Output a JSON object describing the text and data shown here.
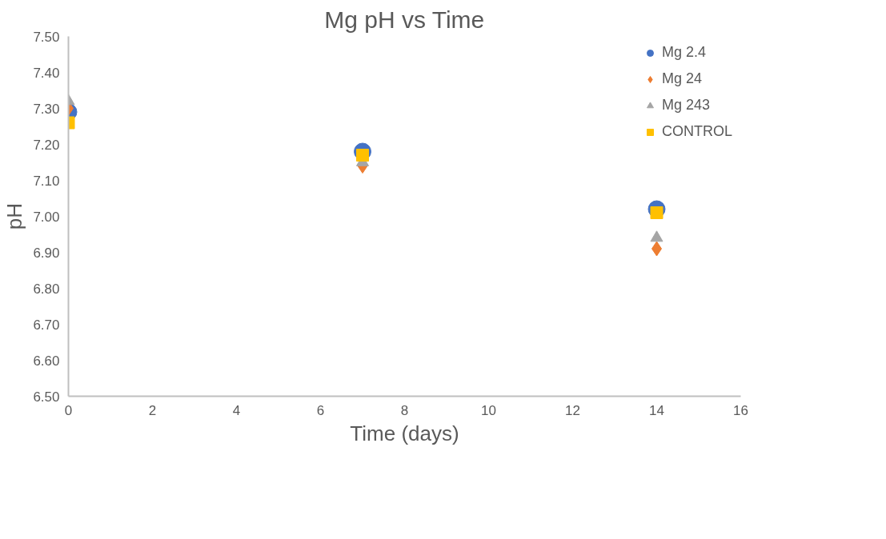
{
  "chart_data": {
    "type": "scatter",
    "title": "Mg pH vs Time",
    "xlabel": "Time (days)",
    "ylabel": "pH",
    "x": [
      0,
      7,
      14
    ],
    "series": [
      {
        "name": "Mg 2.4",
        "color": "#4472c4",
        "marker": "circle",
        "values": [
          7.29,
          7.18,
          7.02
        ]
      },
      {
        "name": "Mg 24",
        "color": "#ed7d31",
        "marker": "diamond",
        "values": [
          7.3,
          7.14,
          6.91
        ]
      },
      {
        "name": "Mg 243",
        "color": "#a5a5a5",
        "marker": "triangle",
        "values": [
          7.32,
          7.15,
          6.94
        ]
      },
      {
        "name": "CONTROL",
        "color": "#ffc000",
        "marker": "square",
        "values": [
          7.26,
          7.17,
          7.01
        ]
      }
    ],
    "xlim": [
      0,
      16
    ],
    "xticks": [
      0,
      2,
      4,
      6,
      8,
      10,
      12,
      14,
      16
    ],
    "ylim": [
      6.5,
      7.5
    ],
    "yticks": [
      {
        "value": 6.5,
        "label": "6.50"
      },
      {
        "value": 6.6,
        "label": "6.60"
      },
      {
        "value": 6.7,
        "label": "6.70"
      },
      {
        "value": 6.8,
        "label": "6.80"
      },
      {
        "value": 6.9,
        "label": "6.90"
      },
      {
        "value": 7.0,
        "label": "7.00"
      },
      {
        "value": 7.1,
        "label": "7.10"
      },
      {
        "value": 7.2,
        "label": "7.20"
      },
      {
        "value": 7.3,
        "label": "7.30"
      },
      {
        "value": 7.4,
        "label": "7.40"
      },
      {
        "value": 7.5,
        "label": "7.50"
      }
    ],
    "grid": false,
    "legend": "top right"
  }
}
